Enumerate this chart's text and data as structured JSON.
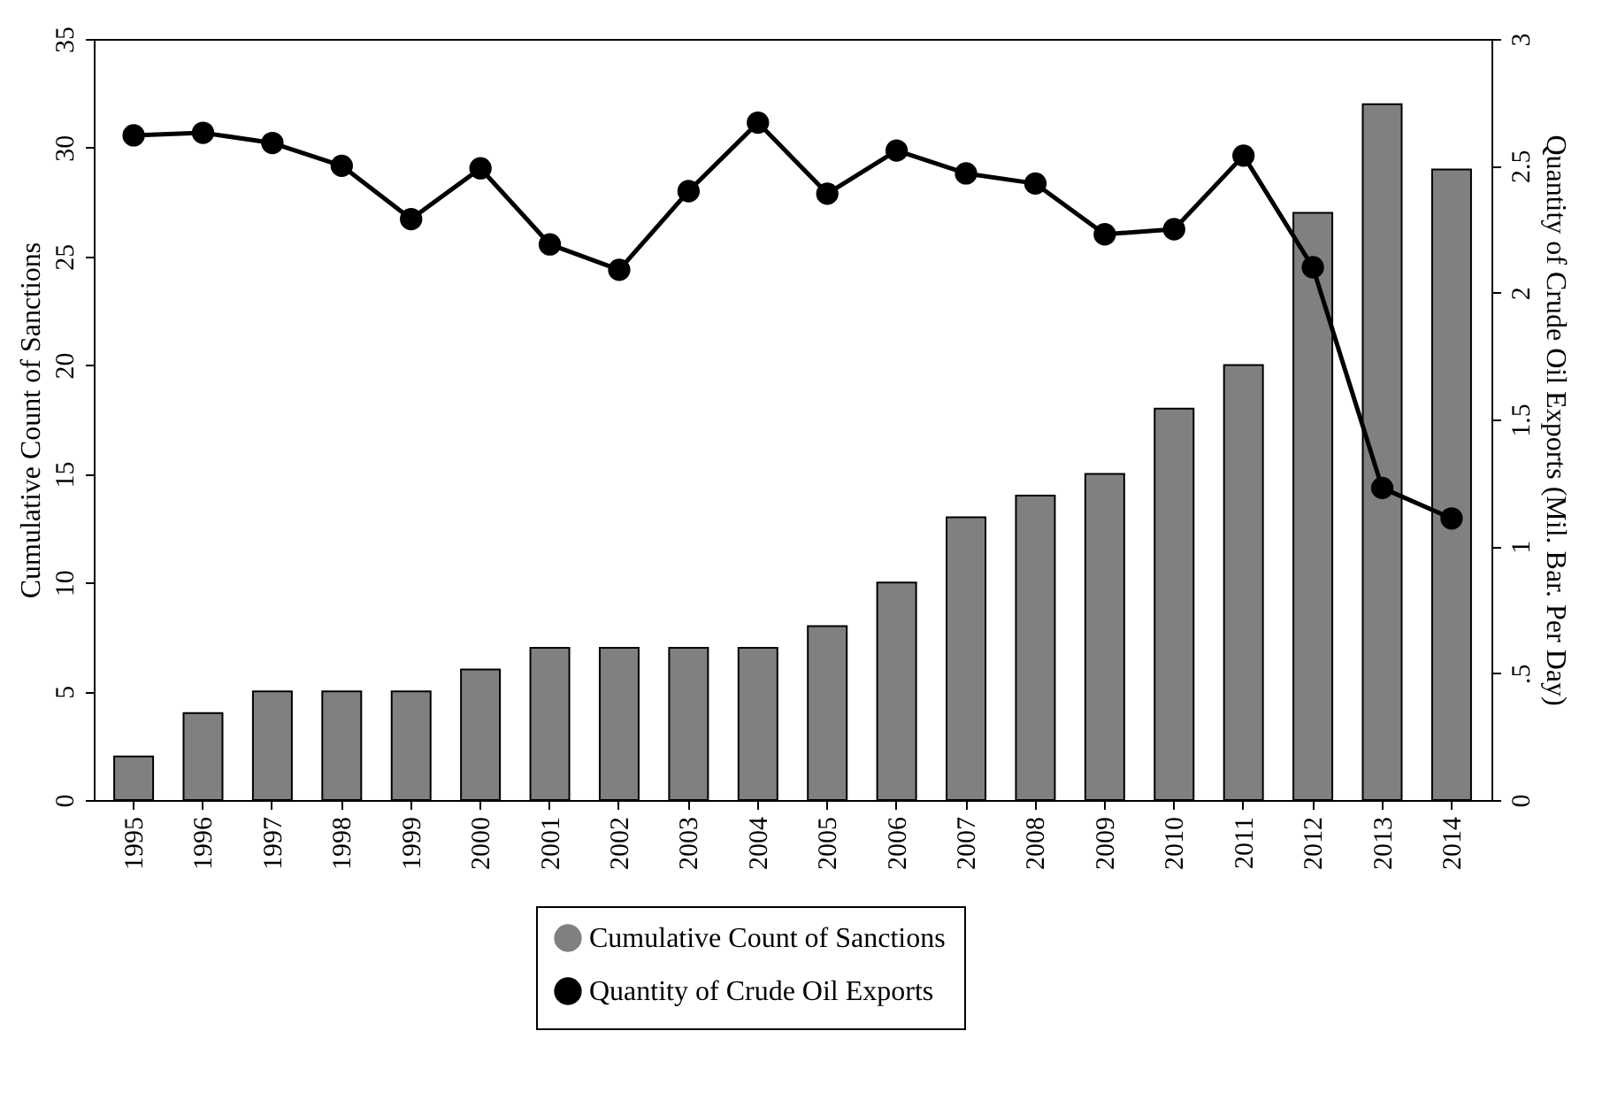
{
  "chart_data": {
    "type": "bar",
    "categories": [
      "1995",
      "1996",
      "1997",
      "1998",
      "1999",
      "2000",
      "2001",
      "2002",
      "2003",
      "2004",
      "2005",
      "2006",
      "2007",
      "2008",
      "2009",
      "2010",
      "2011",
      "2012",
      "2013",
      "2014"
    ],
    "series": [
      {
        "name": "Cumulative Count of Sanctions",
        "color": "#808080",
        "values": [
          2,
          4,
          5,
          5,
          5,
          6,
          7,
          7,
          7,
          7,
          8,
          10,
          13,
          14,
          15,
          18,
          20,
          27,
          32,
          29
        ]
      },
      {
        "name": "Quantity of Crude Oil Exports",
        "type": "line",
        "axis": "y2",
        "color": "#000000",
        "marker": "circle",
        "line_style": "solid",
        "values": [
          2.62,
          2.63,
          2.59,
          2.5,
          2.29,
          2.49,
          2.19,
          2.09,
          2.4,
          2.67,
          2.39,
          2.56,
          2.47,
          2.43,
          2.23,
          2.25,
          2.54,
          2.1,
          1.23,
          1.11
        ]
      }
    ],
    "ylabel": "Cumulative Count of Sanctions",
    "y2label": "Quantity of Crude Oil Exports (Mil. Bar. Per Day)",
    "ylim": [
      0,
      35
    ],
    "yticks": [
      0,
      5,
      10,
      15,
      20,
      25,
      30,
      35
    ],
    "y2lim": [
      0,
      3
    ],
    "y2ticks": [
      0,
      {
        "value": 0.5,
        "label": ".5"
      },
      1,
      1.5,
      2,
      2.5,
      3
    ],
    "grid": false,
    "legend": "bottom"
  }
}
